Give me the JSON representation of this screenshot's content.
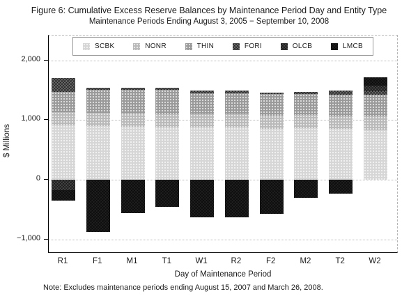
{
  "figure": {
    "title": "Figure 6: Cumulative Excess Reserve Balances by Maintenance Period Day and Entity Type",
    "subtitle": "Maintenance Periods Ending August 3, 2005 − September 10, 2008",
    "note": "Note: Excludes maintenance periods ending August 15, 2007 and March 26, 2008."
  },
  "chart_data": {
    "type": "bar",
    "stacked": true,
    "title": "Figure 6: Cumulative Excess Reserve Balances by Maintenance Period Day and Entity Type",
    "subtitle": "Maintenance Periods Ending August 3, 2005 − September 10, 2008",
    "xlabel": "Day of Maintenance Period",
    "ylabel": "$ Millions",
    "ylim": [
      -1240,
      2410
    ],
    "yticks": [
      2000,
      1000,
      0,
      -1000
    ],
    "ytick_labels": [
      "2,000",
      "1,000",
      "0",
      "−1,000"
    ],
    "grid": "horizontal dotted gridlines at each ytick",
    "legend_position": "top-inside-horizontal",
    "categories": [
      "R1",
      "F1",
      "M1",
      "T1",
      "W1",
      "R2",
      "F2",
      "M2",
      "T2",
      "W2"
    ],
    "series": [
      {
        "name": "SCBK",
        "color": "#d6d6d6",
        "pattern": "dots",
        "values": [
          910,
          900,
          890,
          880,
          875,
          875,
          850,
          860,
          855,
          830
        ]
      },
      {
        "name": "NONR",
        "color": "#bababa",
        "pattern": "dots",
        "values": [
          220,
          220,
          220,
          220,
          220,
          220,
          220,
          220,
          210,
          230
        ]
      },
      {
        "name": "THIN",
        "color": "#9a9a9a",
        "pattern": "dots",
        "values": [
          340,
          390,
          400,
          400,
          355,
          355,
          360,
          355,
          355,
          360
        ]
      },
      {
        "name": "FORI",
        "color": "#6e6e6e",
        "pattern": "crosshatch",
        "values": [
          230,
          30,
          35,
          45,
          45,
          40,
          30,
          40,
          70,
          60
        ]
      },
      {
        "name": "OLCB",
        "color": "#474747",
        "pattern": "crosshatch",
        "values": [
          -170,
          0,
          0,
          0,
          0,
          0,
          0,
          0,
          0,
          90
        ]
      },
      {
        "name": "LMCB",
        "color": "#202020",
        "pattern": "crosshatch",
        "values": [
          -175,
          -870,
          -560,
          -460,
          -630,
          -625,
          -570,
          -300,
          -230,
          140
        ]
      }
    ],
    "note": "Note: Excludes maintenance periods ending August 15, 2007 and March 26, 2008."
  }
}
